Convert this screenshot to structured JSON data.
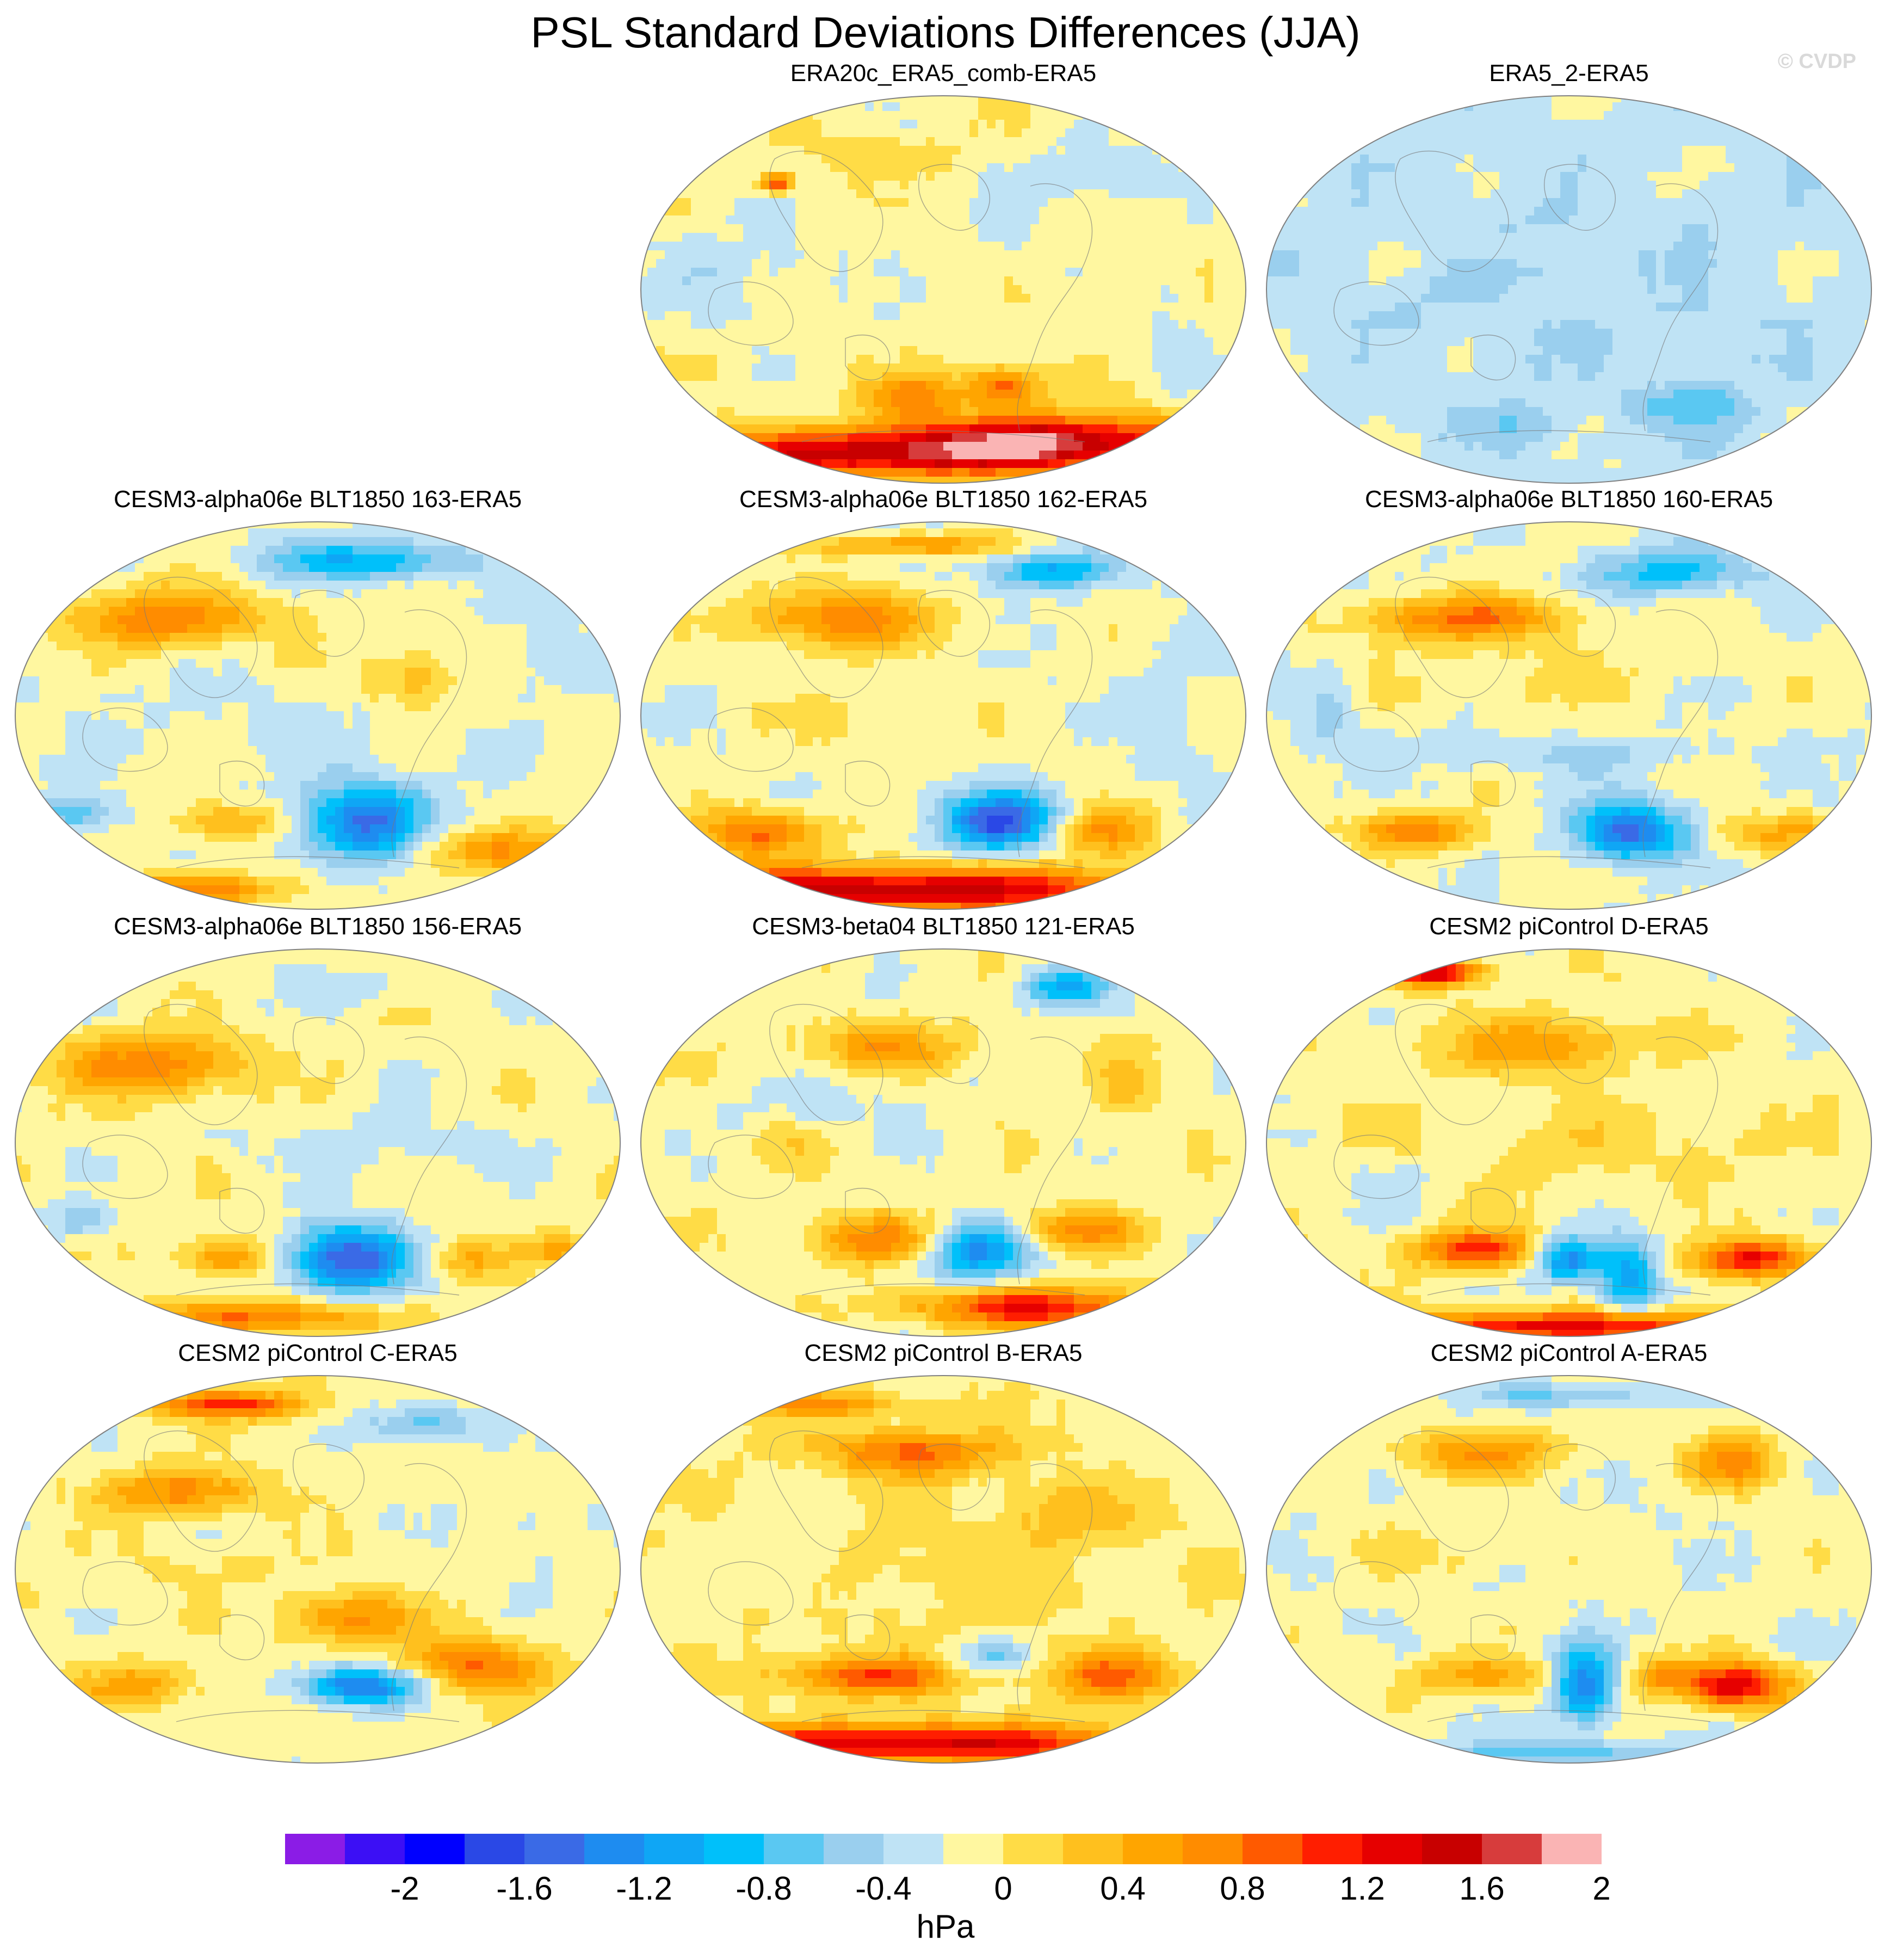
{
  "title": "PSL Standard Deviations Differences (JJA)",
  "watermark": "© CVDP",
  "panels": [
    {
      "label": "ERA20c_ERA5_comb-ERA5",
      "row": 0,
      "col": 1,
      "blobs": [
        [
          -0.15,
          -0.85,
          0.9,
          0.12,
          1.6
        ],
        [
          0.35,
          -0.75,
          0.5,
          0.12,
          1.2
        ],
        [
          -0.1,
          -0.55,
          0.15,
          0.12,
          0.8
        ],
        [
          0.2,
          -0.5,
          0.12,
          0.1,
          1.0
        ],
        [
          -0.7,
          0.1,
          0.3,
          0.25,
          -0.2
        ],
        [
          0.5,
          0.6,
          0.25,
          0.15,
          -0.3
        ],
        [
          -0.2,
          0.7,
          0.2,
          0.12,
          0.3
        ],
        [
          -0.55,
          0.55,
          0.05,
          0.05,
          1.2
        ],
        [
          0.1,
          0.2,
          0.3,
          0.2,
          -0.1
        ],
        [
          0.75,
          -0.2,
          0.1,
          0.3,
          -0.2
        ]
      ],
      "base": 0.1
    },
    {
      "label": "ERA5_2-ERA5",
      "row": 0,
      "col": 2,
      "blobs": [
        [
          0.0,
          0.0,
          0.9,
          0.7,
          -0.15
        ],
        [
          -0.3,
          0.2,
          0.3,
          0.1,
          0.15
        ],
        [
          0.4,
          -0.6,
          0.2,
          0.1,
          -0.45
        ],
        [
          0.15,
          0.55,
          0.2,
          0.15,
          0.1
        ],
        [
          -0.5,
          -0.4,
          0.15,
          0.15,
          0.1
        ],
        [
          0.75,
          0.1,
          0.1,
          0.2,
          0.1
        ],
        [
          0.2,
          -0.3,
          0.1,
          0.25,
          0.1
        ],
        [
          -0.2,
          -0.7,
          0.2,
          0.1,
          -0.2
        ]
      ],
      "base": -0.05
    },
    {
      "label": "CESM3-alpha06e BLT1850 163-ERA5",
      "row": 1,
      "col": 0,
      "blobs": [
        [
          -0.5,
          0.5,
          0.35,
          0.15,
          0.9
        ],
        [
          0.15,
          -0.55,
          0.22,
          0.2,
          -1.3
        ],
        [
          0.15,
          0.8,
          0.3,
          0.1,
          -0.9
        ],
        [
          -0.8,
          -0.5,
          0.15,
          0.1,
          -0.6
        ],
        [
          0.6,
          -0.7,
          0.3,
          0.12,
          0.7
        ],
        [
          -0.3,
          -0.55,
          0.2,
          0.1,
          0.6
        ],
        [
          0.3,
          0.2,
          0.15,
          0.15,
          0.5
        ],
        [
          -0.2,
          0.0,
          0.5,
          0.2,
          -0.1
        ],
        [
          -0.4,
          -0.9,
          0.3,
          0.08,
          0.9
        ],
        [
          0.75,
          0.3,
          0.15,
          0.2,
          -0.2
        ]
      ],
      "base": 0.05
    },
    {
      "label": "CESM3-alpha06e BLT1850 162-ERA5",
      "row": 1,
      "col": 1,
      "blobs": [
        [
          -0.2,
          -0.9,
          1.0,
          0.12,
          1.7
        ],
        [
          0.2,
          -0.55,
          0.2,
          0.15,
          -1.5
        ],
        [
          -0.6,
          -0.6,
          0.2,
          0.12,
          1.0
        ],
        [
          0.5,
          -0.6,
          0.2,
          0.12,
          0.8
        ],
        [
          -0.35,
          0.5,
          0.3,
          0.15,
          0.9
        ],
        [
          0.35,
          0.75,
          0.2,
          0.1,
          -0.9
        ],
        [
          -0.1,
          0.88,
          0.3,
          0.06,
          0.8
        ],
        [
          -0.3,
          0.0,
          0.4,
          0.2,
          0.15
        ],
        [
          0.75,
          0.0,
          0.12,
          0.3,
          -0.2
        ]
      ],
      "base": 0.05
    },
    {
      "label": "CESM3-alpha06e BLT1850 160-ERA5",
      "row": 1,
      "col": 2,
      "blobs": [
        [
          -0.35,
          0.5,
          0.35,
          0.12,
          0.9
        ],
        [
          0.2,
          -0.6,
          0.18,
          0.15,
          -1.4
        ],
        [
          -0.5,
          -0.6,
          0.2,
          0.1,
          0.9
        ],
        [
          0.35,
          0.75,
          0.25,
          0.12,
          -0.8
        ],
        [
          0.7,
          -0.6,
          0.2,
          0.1,
          0.6
        ],
        [
          0.0,
          -0.2,
          0.5,
          0.1,
          -0.3
        ],
        [
          -0.1,
          0.2,
          0.4,
          0.2,
          0.2
        ],
        [
          -0.8,
          0.0,
          0.1,
          0.2,
          -0.3
        ]
      ],
      "base": 0.05
    },
    {
      "label": "CESM3-alpha06e BLT1850 156-ERA5",
      "row": 2,
      "col": 0,
      "blobs": [
        [
          -0.55,
          0.4,
          0.3,
          0.15,
          0.9
        ],
        [
          0.1,
          -0.6,
          0.2,
          0.18,
          -1.5
        ],
        [
          -0.3,
          -0.6,
          0.15,
          0.1,
          0.7
        ],
        [
          0.5,
          -0.6,
          0.15,
          0.1,
          0.5
        ],
        [
          0.8,
          -0.55,
          0.1,
          0.08,
          0.6
        ],
        [
          0.1,
          0.8,
          0.3,
          0.1,
          -0.2
        ],
        [
          -0.2,
          -0.9,
          0.4,
          0.08,
          0.9
        ],
        [
          0.2,
          0.0,
          0.5,
          0.15,
          -0.2
        ],
        [
          -0.8,
          -0.4,
          0.12,
          0.1,
          -0.4
        ]
      ],
      "base": 0.1
    },
    {
      "label": "CESM3-beta04 BLT1850 121-ERA5",
      "row": 2,
      "col": 1,
      "blobs": [
        [
          0.3,
          -0.85,
          0.4,
          0.1,
          1.3
        ],
        [
          0.1,
          -0.55,
          0.18,
          0.15,
          -1.2
        ],
        [
          -0.2,
          -0.5,
          0.25,
          0.12,
          0.8
        ],
        [
          0.45,
          -0.45,
          0.2,
          0.1,
          0.8
        ],
        [
          -0.2,
          0.5,
          0.25,
          0.12,
          0.7
        ],
        [
          0.4,
          0.8,
          0.15,
          0.1,
          -0.9
        ],
        [
          -0.4,
          0.2,
          0.3,
          0.15,
          -0.2
        ],
        [
          -0.5,
          0.0,
          0.1,
          0.1,
          0.3
        ],
        [
          0.6,
          0.3,
          0.1,
          0.15,
          0.4
        ]
      ],
      "base": 0.1
    },
    {
      "label": "CESM2 piControl D-ERA5",
      "row": 2,
      "col": 2,
      "blobs": [
        [
          -0.45,
          0.88,
          0.15,
          0.07,
          1.6
        ],
        [
          -0.3,
          -0.55,
          0.2,
          0.1,
          1.2
        ],
        [
          0.0,
          -0.6,
          0.12,
          0.12,
          -1.2
        ],
        [
          0.2,
          -0.7,
          0.1,
          0.2,
          -1.0
        ],
        [
          0.6,
          -0.6,
          0.2,
          0.1,
          1.3
        ],
        [
          0.0,
          -0.95,
          0.8,
          0.08,
          1.4
        ],
        [
          -0.1,
          0.5,
          0.3,
          0.15,
          0.7
        ],
        [
          0.1,
          0.0,
          0.6,
          0.2,
          0.2
        ],
        [
          -0.6,
          -0.2,
          0.15,
          0.15,
          -0.2
        ]
      ],
      "base": 0.1
    },
    {
      "label": "CESM2 piControl C-ERA5",
      "row": 3,
      "col": 0,
      "blobs": [
        [
          0.15,
          -0.6,
          0.2,
          0.1,
          -1.4
        ],
        [
          0.5,
          -0.5,
          0.25,
          0.15,
          0.9
        ],
        [
          -0.6,
          -0.6,
          0.2,
          0.1,
          0.6
        ],
        [
          -0.3,
          0.85,
          0.25,
          0.07,
          1.2
        ],
        [
          0.35,
          0.75,
          0.2,
          0.1,
          -0.6
        ],
        [
          -0.45,
          0.4,
          0.25,
          0.12,
          0.8
        ],
        [
          0.1,
          -0.25,
          0.2,
          0.12,
          0.8
        ],
        [
          -0.3,
          0.0,
          0.4,
          0.15,
          0.1
        ],
        [
          0.7,
          0.2,
          0.1,
          0.2,
          -0.2
        ]
      ],
      "base": 0.1
    },
    {
      "label": "CESM2 piControl B-ERA5",
      "row": 3,
      "col": 1,
      "blobs": [
        [
          -0.1,
          -0.9,
          0.8,
          0.1,
          1.5
        ],
        [
          -0.25,
          -0.55,
          0.3,
          0.1,
          1.0
        ],
        [
          0.15,
          -0.45,
          0.15,
          0.08,
          -0.5
        ],
        [
          0.55,
          -0.55,
          0.2,
          0.12,
          0.9
        ],
        [
          -0.1,
          0.6,
          0.3,
          0.12,
          0.9
        ],
        [
          -0.4,
          0.85,
          0.3,
          0.06,
          0.7
        ],
        [
          0.4,
          0.3,
          0.2,
          0.15,
          0.4
        ],
        [
          -0.5,
          0.0,
          0.15,
          0.2,
          -0.2
        ],
        [
          0.0,
          0.0,
          0.6,
          0.3,
          0.15
        ]
      ],
      "base": 0.15
    },
    {
      "label": "CESM2 piControl A-ERA5",
      "row": 3,
      "col": 2,
      "blobs": [
        [
          0.05,
          -0.6,
          0.1,
          0.2,
          -1.2
        ],
        [
          0.55,
          -0.6,
          0.18,
          0.12,
          1.5
        ],
        [
          -0.3,
          -0.55,
          0.25,
          0.1,
          0.6
        ],
        [
          0.3,
          -0.55,
          0.1,
          0.1,
          0.6
        ],
        [
          0.0,
          0.9,
          0.3,
          0.06,
          -0.5
        ],
        [
          -0.3,
          0.6,
          0.3,
          0.12,
          0.7
        ],
        [
          0.55,
          0.55,
          0.15,
          0.15,
          0.8
        ],
        [
          -0.4,
          0.1,
          0.3,
          0.15,
          0.2
        ],
        [
          0.0,
          -0.95,
          0.6,
          0.06,
          -0.5
        ]
      ],
      "base": 0.05
    }
  ],
  "colorbar": {
    "colors": [
      "#8b1ce6",
      "#3c0ff5",
      "#0000ff",
      "#2a48e6",
      "#3a6ae6",
      "#1e8cf0",
      "#0fa6f5",
      "#00c0fa",
      "#5ac8f2",
      "#9acfee",
      "#bfe3f5",
      "#fff7a0",
      "#ffdc46",
      "#ffc01e",
      "#ffa500",
      "#ff8c00",
      "#ff5a00",
      "#ff1e00",
      "#e60000",
      "#c80000",
      "#d73c3c",
      "#fab4b4"
    ],
    "levels": [
      "-2",
      "-1.6",
      "-1.2",
      "-0.8",
      "-0.4",
      "0",
      "0.4",
      "0.8",
      "1.2",
      "1.6",
      "2"
    ],
    "units": "hPa"
  }
}
